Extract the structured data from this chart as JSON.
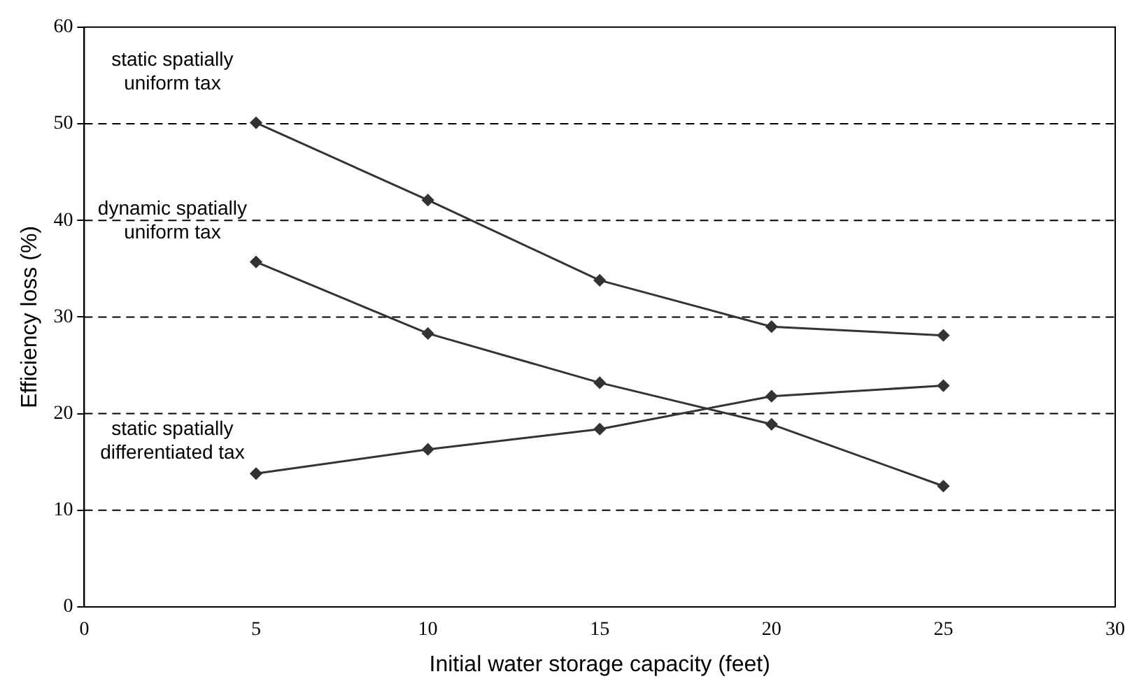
{
  "chart_data": {
    "type": "line",
    "xlabel": "Initial water storage capacity (feet)",
    "ylabel": "Efficiency loss (%)",
    "x": [
      5,
      10,
      15,
      20,
      25
    ],
    "series": [
      {
        "color": "#333333",
        "values": [
          50.1,
          42.1,
          33.8,
          29.0,
          28.1
        ]
      },
      {
        "color": "#333333",
        "values": [
          35.7,
          28.3,
          23.2,
          18.9,
          12.5
        ]
      },
      {
        "color": "#333333",
        "values": [
          13.8,
          16.3,
          18.4,
          21.8,
          22.9
        ]
      }
    ],
    "xlim": [
      0,
      30
    ],
    "xticks": [
      0,
      5,
      10,
      15,
      20,
      25,
      30
    ],
    "ylim": [
      0,
      60
    ],
    "yticks": [
      0,
      10,
      20,
      30,
      40,
      50,
      60
    ],
    "grid": "y",
    "marker": "diamond",
    "line_style": "solid",
    "legend": false,
    "annotations": [
      "static spatially uniform tax",
      "dynamic spatially uniform tax",
      "static spatially differentiated tax"
    ]
  }
}
